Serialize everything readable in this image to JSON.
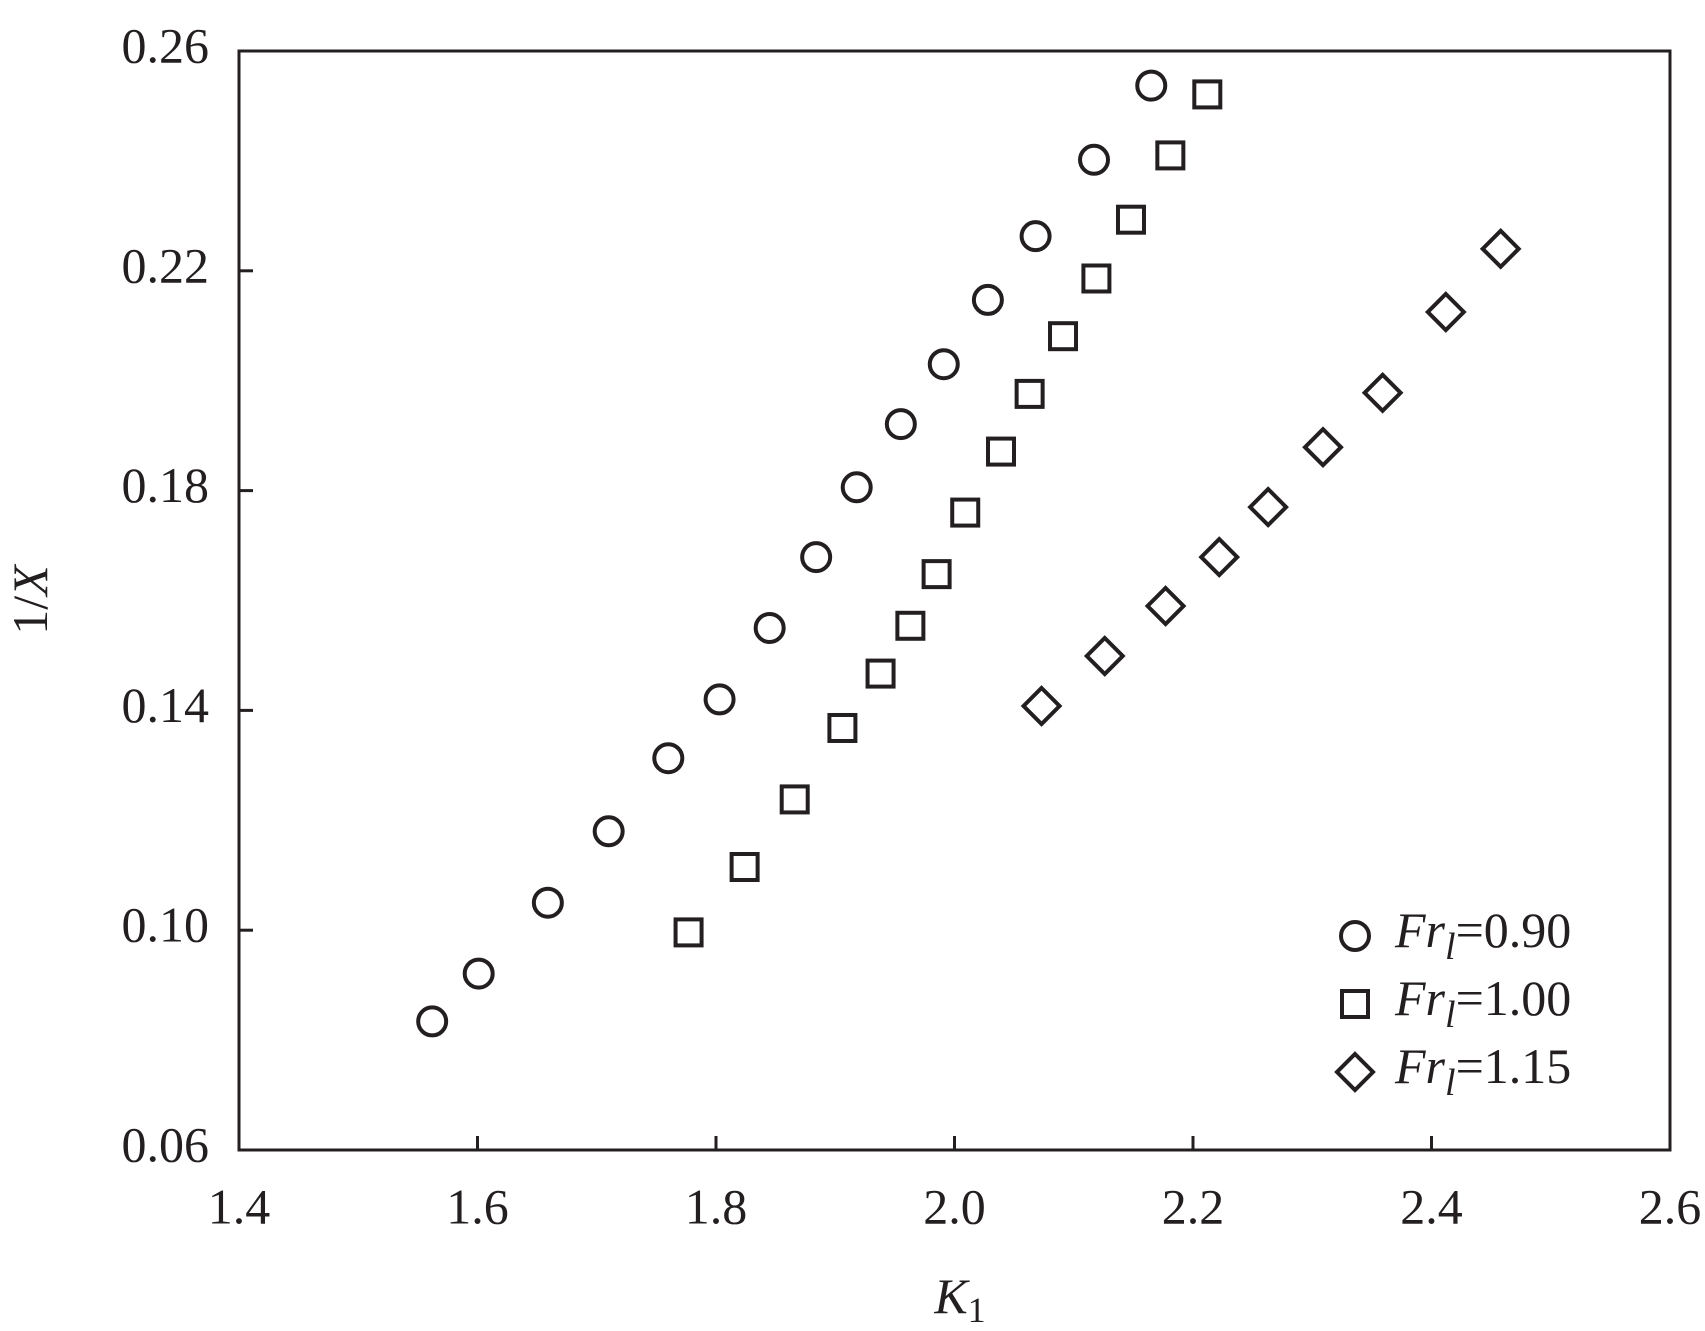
{
  "chart_data": {
    "type": "scatter",
    "xlabel": {
      "var": "K",
      "sub": "1"
    },
    "ylabel": {
      "prefix": "1/",
      "var": "X"
    },
    "legend_label": {
      "base": "Fr",
      "sub": "l"
    },
    "legend": "lower right",
    "xlim": [
      1.4,
      2.6
    ],
    "xticks": [
      1.4,
      1.6,
      1.8,
      {
        "value": 2,
        "label": "2.0"
      },
      2.2,
      2.4,
      2.6
    ],
    "ylim": [
      0.06,
      0.26
    ],
    "yticks": [
      0.06,
      {
        "value": 0.1,
        "label": "0.10"
      },
      0.14,
      0.18,
      0.22,
      0.26
    ],
    "series": [
      {
        "name": "=0.90",
        "marker": "circle",
        "color": "#231f20",
        "x": [
          1.562,
          1.601,
          1.659,
          1.71,
          1.76,
          1.803,
          1.845,
          1.884,
          1.918,
          1.955,
          1.991,
          2.028,
          2.068,
          2.117,
          2.165
        ],
        "values": [
          0.0834,
          0.0921,
          0.105,
          0.118,
          0.1313,
          0.142,
          0.155,
          0.1679,
          0.1806,
          0.1921,
          0.203,
          0.2147,
          0.2263,
          0.2402,
          0.2537
        ]
      },
      {
        "name": "=1.00",
        "marker": "square",
        "color": "#231f20",
        "x": [
          1.777,
          1.824,
          1.866,
          1.906,
          1.938,
          1.963,
          1.985,
          2.009,
          2.039,
          2.063,
          2.091,
          2.119,
          2.148,
          2.181,
          2.212
        ],
        "values": [
          0.0996,
          0.1115,
          0.1238,
          0.1368,
          0.1467,
          0.1554,
          0.1648,
          0.176,
          0.1871,
          0.1976,
          0.2081,
          0.2186,
          0.2293,
          0.241,
          0.2521
        ]
      },
      {
        "name": "=1.15",
        "marker": "diamond",
        "color": "#231f20",
        "x": [
          2.073,
          2.126,
          2.177,
          2.222,
          2.263,
          2.309,
          2.359,
          2.412,
          2.458
        ],
        "values": [
          0.1408,
          0.1499,
          0.159,
          0.1679,
          0.177,
          0.1879,
          0.1978,
          0.2125,
          0.224
        ]
      }
    ]
  }
}
